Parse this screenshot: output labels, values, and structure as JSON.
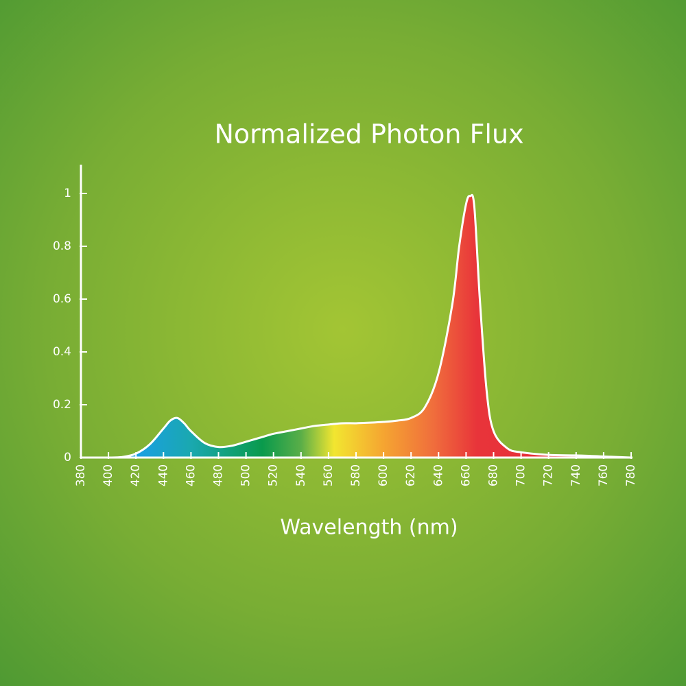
{
  "chart_data": {
    "type": "area",
    "title": "Normalized Photon Flux",
    "x_label": "Wavelength (nm)",
    "x": [
      380,
      390,
      400,
      410,
      420,
      430,
      440,
      445,
      450,
      455,
      460,
      470,
      480,
      490,
      500,
      510,
      520,
      530,
      540,
      550,
      560,
      570,
      580,
      590,
      600,
      610,
      620,
      630,
      640,
      650,
      655,
      660,
      663,
      666,
      670,
      675,
      680,
      690,
      700,
      720,
      740,
      760,
      780
    ],
    "values": [
      0,
      0,
      0,
      0.002,
      0.015,
      0.05,
      0.11,
      0.14,
      0.15,
      0.13,
      0.1,
      0.055,
      0.04,
      0.045,
      0.06,
      0.075,
      0.09,
      0.1,
      0.11,
      0.12,
      0.125,
      0.13,
      0.13,
      0.132,
      0.135,
      0.14,
      0.15,
      0.19,
      0.32,
      0.58,
      0.8,
      0.96,
      0.99,
      0.95,
      0.6,
      0.25,
      0.1,
      0.035,
      0.02,
      0.01,
      0.008,
      0.004,
      0
    ],
    "line_color": "#ffffff",
    "xlim": [
      380,
      780
    ],
    "ylim": [
      0,
      1.1
    ],
    "xticks": [
      380,
      400,
      420,
      440,
      460,
      480,
      500,
      520,
      540,
      560,
      580,
      600,
      620,
      640,
      660,
      680,
      700,
      720,
      740,
      760,
      780
    ],
    "yticks": [
      0,
      0.2,
      0.4,
      0.6,
      0.8,
      1
    ]
  }
}
